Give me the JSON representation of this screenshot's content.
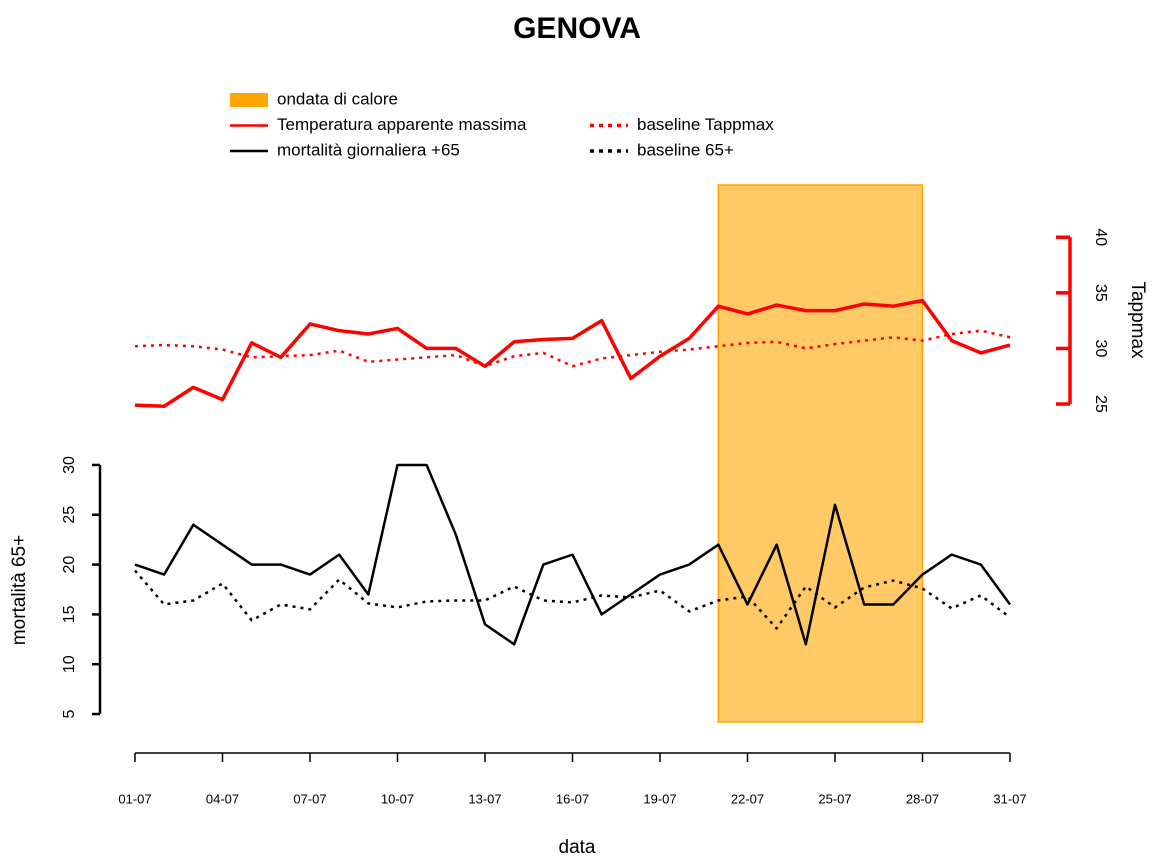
{
  "chart_data": {
    "type": "line",
    "title": "GENOVA",
    "x_label": "data",
    "y_label": "mortalità 65+",
    "y2_label": "Tappmax",
    "x": [
      1,
      2,
      3,
      4,
      5,
      6,
      7,
      8,
      9,
      10,
      11,
      12,
      13,
      14,
      15,
      16,
      17,
      18,
      19,
      20,
      21,
      22,
      23,
      24,
      25,
      26,
      27,
      28,
      29,
      30,
      31
    ],
    "xlim": [
      1,
      31
    ],
    "xticks": [
      {
        "value": 1,
        "label": "01-07"
      },
      {
        "value": 4,
        "label": "04-07"
      },
      {
        "value": 7,
        "label": "07-07"
      },
      {
        "value": 10,
        "label": "10-07"
      },
      {
        "value": 13,
        "label": "13-07"
      },
      {
        "value": 16,
        "label": "16-07"
      },
      {
        "value": 19,
        "label": "19-07"
      },
      {
        "value": 22,
        "label": "22-07"
      },
      {
        "value": 25,
        "label": "25-07"
      },
      {
        "value": 28,
        "label": "28-07"
      },
      {
        "value": 31,
        "label": "31-07"
      }
    ],
    "ylim": [
      4.2,
      58.1
    ],
    "yticks": [
      5,
      10,
      15,
      20,
      25,
      30
    ],
    "y2lim": [
      -3.6,
      44.7
    ],
    "y2ticks": [
      25,
      30,
      35,
      40
    ],
    "y2_color": "#ff0000",
    "heatwave": {
      "name": "ondata di calore",
      "color": "#ffa500",
      "range": [
        21,
        28
      ]
    },
    "series": [
      {
        "name": "Temperatura apparente massima",
        "color": "#ff0000",
        "axis": "y2",
        "dotted": false,
        "values": [
          24.9,
          24.8,
          26.5,
          25.4,
          30.5,
          29.2,
          32.2,
          31.6,
          31.3,
          31.8,
          30.0,
          30.0,
          28.4,
          30.6,
          30.8,
          30.9,
          32.5,
          27.3,
          29.3,
          30.9,
          33.8,
          33.1,
          33.9,
          33.4,
          33.4,
          34.0,
          33.8,
          34.3,
          30.7,
          29.6,
          30.3
        ]
      },
      {
        "name": "baseline Tappmax",
        "color": "#ff0000",
        "axis": "y2",
        "dotted": true,
        "values": [
          30.2,
          30.3,
          30.2,
          29.9,
          29.2,
          29.3,
          29.4,
          29.8,
          28.8,
          29.0,
          29.2,
          29.4,
          28.4,
          29.3,
          29.6,
          28.4,
          29.1,
          29.4,
          29.7,
          29.9,
          30.2,
          30.5,
          30.6,
          30.0,
          30.4,
          30.7,
          31.0,
          30.7,
          31.3,
          31.6,
          31.0
        ]
      },
      {
        "name": "mortalità giornaliera +65",
        "color": "#000000",
        "axis": "y",
        "dotted": false,
        "values": [
          20,
          19,
          24,
          22,
          20,
          20,
          19,
          21,
          17,
          30,
          30,
          23,
          14,
          12,
          20,
          21,
          15,
          17,
          19,
          20,
          22,
          16,
          22,
          12,
          26,
          16,
          16,
          19,
          21,
          20,
          16
        ]
      },
      {
        "name": "baseline 65+",
        "color": "#000000",
        "axis": "y",
        "dotted": true,
        "values": [
          19.4,
          16.0,
          16.4,
          18.1,
          14.4,
          16.0,
          15.5,
          18.5,
          16.1,
          15.7,
          16.3,
          16.4,
          16.4,
          17.8,
          16.4,
          16.2,
          16.9,
          16.7,
          17.4,
          15.3,
          16.4,
          16.8,
          13.6,
          17.8,
          15.7,
          17.7,
          18.4,
          17.6,
          15.6,
          16.9,
          14.7
        ]
      }
    ]
  }
}
